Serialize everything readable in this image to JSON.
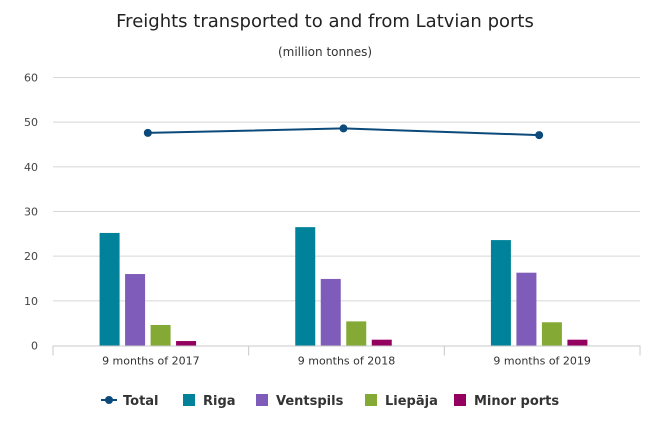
{
  "chart_data": {
    "type": "bar",
    "title": "Freights transported to and from Latvian ports",
    "subtitle": "(million tonnes)",
    "xlabel": "",
    "ylabel": "",
    "ylim": [
      0,
      60
    ],
    "yticks": [
      0,
      10,
      20,
      30,
      40,
      50,
      60
    ],
    "grid": true,
    "legend_position": "bottom",
    "categories": [
      "9 months of 2017",
      "9 months of 2018",
      "9 months of 2019"
    ],
    "series": [
      {
        "name": "Total",
        "type": "line",
        "color": "#0b4a7a",
        "values": [
          47.6,
          48.6,
          47.1
        ]
      },
      {
        "name": "Riga",
        "type": "bar",
        "color": "#00829a",
        "values": [
          25.2,
          26.5,
          23.6
        ]
      },
      {
        "name": "Ventspils",
        "type": "bar",
        "color": "#7f5bba",
        "values": [
          16.0,
          14.9,
          16.3
        ]
      },
      {
        "name": "Liepāja",
        "type": "bar",
        "color": "#84aa35",
        "values": [
          4.6,
          5.4,
          5.2
        ]
      },
      {
        "name": "Minor ports",
        "type": "bar",
        "color": "#94005f",
        "values": [
          1.0,
          1.3,
          1.3
        ]
      }
    ]
  }
}
